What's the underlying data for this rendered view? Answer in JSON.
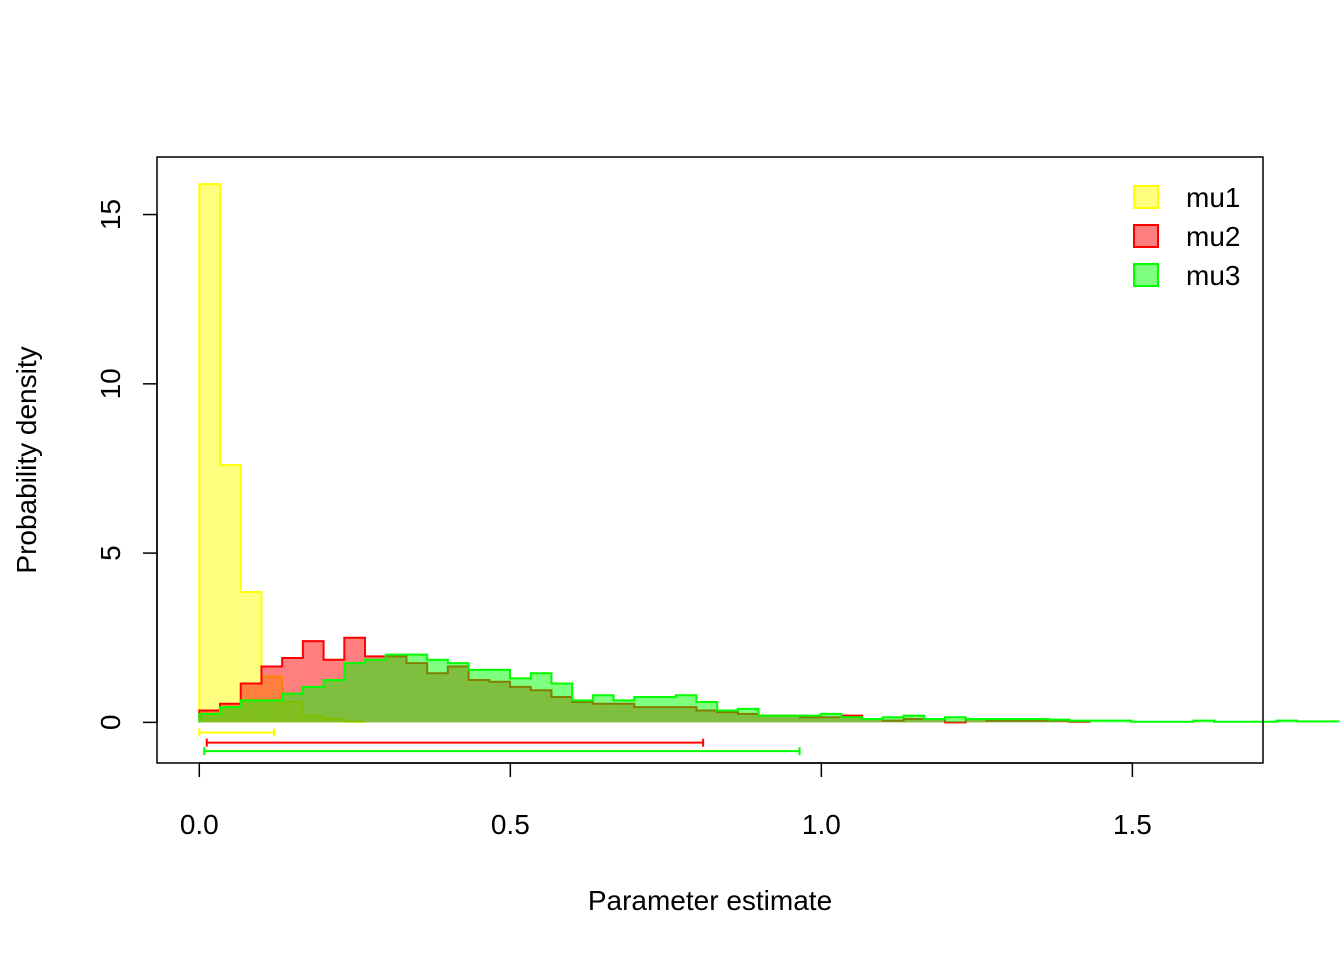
{
  "chart_data": {
    "type": "histogram",
    "xlabel": "Parameter estimate",
    "ylabel": "Probability density",
    "xlim": [
      -0.068,
      1.71
    ],
    "ylim": [
      -1.2,
      16.7
    ],
    "xticks": [
      0.0,
      0.5,
      1.0,
      1.5
    ],
    "xtick_labels": [
      "0.0",
      "0.5",
      "1.0",
      "1.5"
    ],
    "yticks": [
      0,
      5,
      10,
      15
    ],
    "ytick_labels": [
      "0",
      "5",
      "10",
      "15"
    ],
    "legend_position": "top-right",
    "grid": false,
    "series": [
      {
        "name": "mu1",
        "color": "#ffff00",
        "bin_start": 0.0,
        "bin_width": 0.0333,
        "values": [
          15.9,
          7.6,
          3.85,
          1.35,
          0.6,
          0.2,
          0.1,
          0.02
        ],
        "interval": [
          0.0,
          0.12
        ],
        "interval_y": -0.3
      },
      {
        "name": "mu2",
        "color": "#ff0000",
        "bin_start": 0.0,
        "bin_width": 0.0333,
        "values": [
          0.35,
          0.55,
          1.15,
          1.65,
          1.9,
          2.4,
          1.85,
          2.5,
          1.95,
          1.95,
          1.75,
          1.45,
          1.65,
          1.25,
          1.2,
          1.05,
          0.95,
          0.75,
          0.6,
          0.55,
          0.55,
          0.45,
          0.45,
          0.45,
          0.35,
          0.3,
          0.25,
          0.2,
          0.2,
          0.15,
          0.15,
          0.2,
          0.1,
          0.05,
          0.1,
          0.1,
          0.0,
          0.1,
          0.05,
          0.05,
          0.05,
          0.05,
          0.02
        ],
        "interval": [
          0.012,
          0.81
        ],
        "interval_y": -0.6
      },
      {
        "name": "mu3",
        "color": "#00ff00",
        "bin_start": 0.0,
        "bin_width": 0.0333,
        "values": [
          0.25,
          0.45,
          0.65,
          0.65,
          0.85,
          1.05,
          1.25,
          1.75,
          1.85,
          2.0,
          2.0,
          1.85,
          1.75,
          1.55,
          1.55,
          1.3,
          1.45,
          1.15,
          0.65,
          0.8,
          0.65,
          0.75,
          0.75,
          0.8,
          0.6,
          0.35,
          0.4,
          0.2,
          0.2,
          0.2,
          0.25,
          0.15,
          0.1,
          0.15,
          0.2,
          0.1,
          0.15,
          0.1,
          0.1,
          0.1,
          0.1,
          0.08,
          0.05,
          0.05,
          0.05,
          0.02,
          0.02,
          0.02,
          0.05,
          0.02,
          0.02,
          0.02,
          0.05,
          0.03,
          0.03
        ],
        "interval": [
          0.008,
          0.965
        ],
        "interval_y": -0.85
      }
    ]
  }
}
